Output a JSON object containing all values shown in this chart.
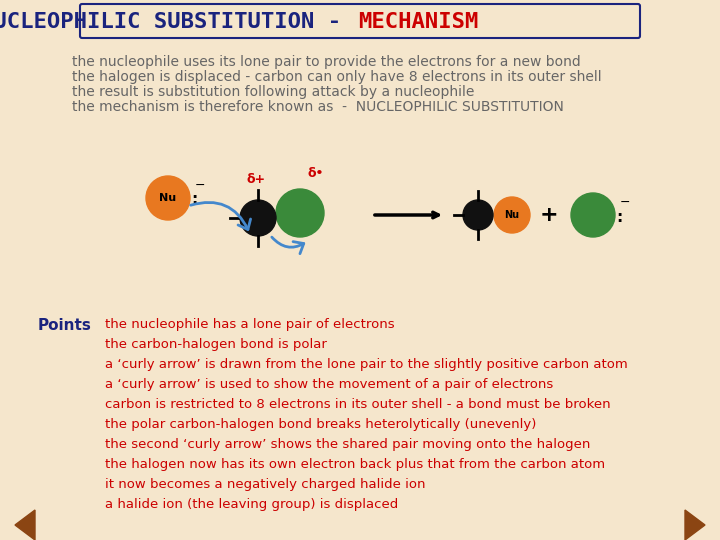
{
  "bg_color": "#f5e6cc",
  "title_part1": "NUCLEOPHILIC SUBSTITUTION - ",
  "title_part2": "MECHANISM",
  "title_color1": "#1a237e",
  "title_color2": "#cc0000",
  "title_fontsize": 16,
  "desc_lines": [
    "the nucleophile uses its lone pair to provide the electrons for a new bond",
    "the halogen is displaced - carbon can only have 8 electrons in its outer shell",
    "the result is substitution following attack by a nucleophile",
    "the mechanism is therefore known as  -  NUCLEOPHILIC SUBSTITUTION"
  ],
  "desc_color": "#666666",
  "desc_fontsize": 10,
  "points_label": "Points",
  "points_color": "#1a237e",
  "points_lines": [
    "the nucleophile has a lone pair of electrons",
    "the carbon-halogen bond is polar",
    "a ‘curly arrow’ is drawn from the lone pair to the slightly positive carbon atom",
    "a ‘curly arrow’ is used to show the movement of a pair of electrons",
    "carbon is restricted to 8 electrons in its outer shell - a bond must be broken",
    "the polar carbon-halogen bond breaks heterolytically (unevenly)",
    "the second ‘curly arrow’ shows the shared pair moving onto the halogen",
    "the halogen now has its own electron back plus that from the carbon atom",
    "it now becomes a negatively charged halide ion",
    "a halide ion (the leaving group) is displaced"
  ],
  "points_text_color": "#cc0000",
  "points_fontsize": 9.5,
  "curly_arrow_color": "#4488cc",
  "nu_color": "#e87820",
  "halogen_color": "#3a8a3a",
  "carbon_color": "#111111",
  "nav_color": "#8B4513"
}
